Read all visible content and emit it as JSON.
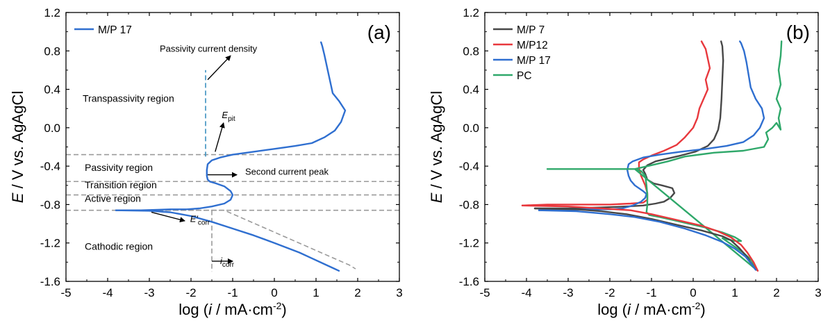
{
  "chart_data": [
    {
      "type": "line",
      "panel_label": "(a)",
      "xlabel": {
        "pre": "log (",
        "italic": "i",
        "post": " / mA·cm",
        "sup": "-2",
        "close": ")"
      },
      "ylabel": {
        "italic": "E",
        "post": " / V vs. AgAgCl"
      },
      "xlim": [
        -5,
        3
      ],
      "ylim": [
        -1.6,
        1.2
      ],
      "xticks": [
        "-5",
        "-4",
        "-3",
        "-2",
        "-1",
        "0",
        "1",
        "2",
        "3"
      ],
      "yticks": [
        "-1.6",
        "-1.2",
        "-0.8",
        "-0.4",
        "0.0",
        "0.4",
        "0.8",
        "1.2"
      ],
      "grid": false,
      "legend": "top-left",
      "series": [
        {
          "name": "M/P 17",
          "color": "#2f6fd0",
          "points": [
            [
              -3.8,
              -0.86
            ],
            [
              -3.2,
              -0.86
            ],
            [
              -2.8,
              -0.855
            ],
            [
              -2.5,
              -0.85
            ],
            [
              -2.1,
              -0.85
            ],
            [
              -1.8,
              -0.84
            ],
            [
              -1.5,
              -0.82
            ],
            [
              -1.2,
              -0.79
            ],
            [
              -1.05,
              -0.75
            ],
            [
              -1.0,
              -0.7
            ],
            [
              -1.05,
              -0.66
            ],
            [
              -1.2,
              -0.61
            ],
            [
              -1.4,
              -0.58
            ],
            [
              -1.55,
              -0.56
            ],
            [
              -1.6,
              -0.54
            ],
            [
              -1.62,
              -0.5
            ],
            [
              -1.62,
              -0.44
            ],
            [
              -1.6,
              -0.38
            ],
            [
              -1.5,
              -0.34
            ],
            [
              -1.3,
              -0.31
            ],
            [
              -1.0,
              -0.28
            ],
            [
              -0.5,
              -0.25
            ],
            [
              0.0,
              -0.22
            ],
            [
              0.5,
              -0.19
            ],
            [
              0.9,
              -0.16
            ],
            [
              1.2,
              -0.1
            ],
            [
              1.45,
              -0.03
            ],
            [
              1.6,
              0.06
            ],
            [
              1.7,
              0.18
            ],
            [
              1.55,
              0.28
            ],
            [
              1.4,
              0.36
            ],
            [
              1.35,
              0.46
            ],
            [
              1.3,
              0.56
            ],
            [
              1.25,
              0.66
            ],
            [
              1.2,
              0.76
            ],
            [
              1.15,
              0.85
            ],
            [
              1.12,
              0.89
            ]
          ]
        },
        {
          "name": "",
          "color": "#2f6fd0",
          "points": [
            [
              -3.8,
              -0.86
            ],
            [
              -3.0,
              -0.865
            ],
            [
              -2.5,
              -0.88
            ],
            [
              -2.0,
              -0.92
            ],
            [
              -1.5,
              -0.98
            ],
            [
              -1.0,
              -1.05
            ],
            [
              -0.5,
              -1.12
            ],
            [
              0.0,
              -1.2
            ],
            [
              0.3,
              -1.25
            ],
            [
              0.6,
              -1.3
            ],
            [
              0.9,
              -1.36
            ],
            [
              1.2,
              -1.42
            ],
            [
              1.4,
              -1.46
            ],
            [
              1.55,
              -1.49
            ]
          ]
        }
      ],
      "annotations": [
        {
          "text": "Passivity current density",
          "x": -2.75,
          "y": 0.79
        },
        {
          "text": "Transpassivity region",
          "x": -4.6,
          "y": 0.27
        },
        {
          "text": "Passivity region",
          "x": -4.55,
          "y": -0.45
        },
        {
          "text": "Transition region",
          "x": -4.55,
          "y": -0.63
        },
        {
          "text": "Active region",
          "x": -4.55,
          "y": -0.77
        },
        {
          "text": "Cathodic region",
          "x": -4.55,
          "y": -1.27
        },
        {
          "text": "Second current peak",
          "x": -0.7,
          "y": -0.49
        },
        {
          "text": "E",
          "sub": "pit",
          "x": -1.26,
          "y": 0.1
        },
        {
          "text": "E′",
          "sub": "corr",
          "x": -2.02,
          "y": -0.98
        },
        {
          "text": "i",
          "sub": "corr",
          "x": -1.3,
          "y": -1.42
        }
      ],
      "reference_lines": {
        "hlines": [
          -0.28,
          -0.56,
          -0.7,
          -0.86
        ],
        "vlines": [
          {
            "x": -1.65,
            "y0": -0.3,
            "y1": 0.6
          },
          {
            "x": -1.5,
            "y0": -0.86,
            "y1": -1.5
          }
        ],
        "tafel": [
          [
            -3.7,
            -0.86
          ],
          [
            -1.2,
            -0.86
          ],
          [
            1.8,
            -1.43
          ],
          [
            1.95,
            -1.47
          ]
        ]
      }
    },
    {
      "type": "line",
      "panel_label": "(b)",
      "xlabel": {
        "pre": "log (",
        "italic": "i",
        "post": " / mA·cm",
        "sup": "-2",
        "close": ")"
      },
      "ylabel": {
        "italic": "E",
        "post": " / V vs. AgAgCl"
      },
      "xlim": [
        -5,
        3
      ],
      "ylim": [
        -1.6,
        1.2
      ],
      "xticks": [
        "-5",
        "-4",
        "-3",
        "-2",
        "-1",
        "0",
        "1",
        "2",
        "3"
      ],
      "yticks": [
        "-1.6",
        "-1.2",
        "-0.8",
        "-0.4",
        "0.0",
        "0.4",
        "0.8",
        "1.2"
      ],
      "grid": false,
      "legend": "top-left",
      "series": [
        {
          "name": "M/P 7",
          "color": "#474747",
          "points": [
            [
              -3.8,
              -0.84
            ],
            [
              -3.0,
              -0.84
            ],
            [
              -2.2,
              -0.83
            ],
            [
              -1.6,
              -0.82
            ],
            [
              -1.2,
              -0.81
            ],
            [
              -0.9,
              -0.79
            ],
            [
              -0.7,
              -0.77
            ],
            [
              -0.55,
              -0.73
            ],
            [
              -0.45,
              -0.68
            ],
            [
              -0.5,
              -0.63
            ],
            [
              -0.75,
              -0.6
            ],
            [
              -0.95,
              -0.58
            ],
            [
              -1.1,
              -0.54
            ],
            [
              -1.15,
              -0.48
            ],
            [
              -1.2,
              -0.44
            ],
            [
              -1.1,
              -0.39
            ],
            [
              -0.9,
              -0.35
            ],
            [
              -0.6,
              -0.32
            ],
            [
              -0.3,
              -0.29
            ],
            [
              0.05,
              -0.25
            ],
            [
              0.35,
              -0.19
            ],
            [
              0.5,
              -0.12
            ],
            [
              0.6,
              -0.02
            ],
            [
              0.65,
              0.1
            ],
            [
              0.68,
              0.3
            ],
            [
              0.7,
              0.5
            ],
            [
              0.72,
              0.7
            ],
            [
              0.7,
              0.85
            ],
            [
              0.67,
              0.9
            ]
          ]
        },
        {
          "name": "M/P12",
          "color": "#e8383d",
          "points": [
            [
              -4.1,
              -0.81
            ],
            [
              -3.5,
              -0.8
            ],
            [
              -2.8,
              -0.8
            ],
            [
              -2.0,
              -0.8
            ],
            [
              -1.5,
              -0.79
            ],
            [
              -1.2,
              -0.78
            ],
            [
              -1.1,
              -0.75
            ],
            [
              -1.1,
              -0.68
            ],
            [
              -1.15,
              -0.6
            ],
            [
              -1.25,
              -0.5
            ],
            [
              -1.3,
              -0.42
            ],
            [
              -1.3,
              -0.36
            ],
            [
              -1.2,
              -0.33
            ],
            [
              -1.0,
              -0.29
            ],
            [
              -0.7,
              -0.24
            ],
            [
              -0.4,
              -0.18
            ],
            [
              -0.2,
              -0.1
            ],
            [
              0.0,
              0.0
            ],
            [
              0.1,
              0.1
            ],
            [
              0.15,
              0.2
            ],
            [
              0.25,
              0.3
            ],
            [
              0.35,
              0.4
            ],
            [
              0.3,
              0.5
            ],
            [
              0.4,
              0.62
            ],
            [
              0.35,
              0.72
            ],
            [
              0.3,
              0.82
            ],
            [
              0.2,
              0.9
            ]
          ]
        },
        {
          "name": "M/P 17",
          "color": "#2f6fd0",
          "points": [
            [
              -3.7,
              -0.86
            ],
            [
              -3.0,
              -0.855
            ],
            [
              -2.5,
              -0.85
            ],
            [
              -2.0,
              -0.85
            ],
            [
              -1.7,
              -0.84
            ],
            [
              -1.45,
              -0.81
            ],
            [
              -1.25,
              -0.77
            ],
            [
              -1.15,
              -0.73
            ],
            [
              -1.12,
              -0.69
            ],
            [
              -1.2,
              -0.66
            ],
            [
              -1.4,
              -0.6
            ],
            [
              -1.5,
              -0.55
            ],
            [
              -1.55,
              -0.5
            ],
            [
              -1.58,
              -0.44
            ],
            [
              -1.55,
              -0.38
            ],
            [
              -1.45,
              -0.35
            ],
            [
              -1.2,
              -0.31
            ],
            [
              -0.8,
              -0.28
            ],
            [
              -0.3,
              -0.25
            ],
            [
              0.3,
              -0.22
            ],
            [
              0.8,
              -0.19
            ],
            [
              1.2,
              -0.15
            ],
            [
              1.45,
              -0.08
            ],
            [
              1.6,
              0.0
            ],
            [
              1.7,
              0.1
            ],
            [
              1.65,
              0.2
            ],
            [
              1.5,
              0.3
            ],
            [
              1.38,
              0.42
            ],
            [
              1.33,
              0.55
            ],
            [
              1.28,
              0.68
            ],
            [
              1.22,
              0.8
            ],
            [
              1.15,
              0.88
            ],
            [
              1.12,
              0.9
            ]
          ]
        },
        {
          "name": "PC",
          "color": "#2fa86a",
          "points": [
            [
              -3.5,
              -0.43
            ],
            [
              -3.0,
              -0.43
            ],
            [
              -2.4,
              -0.43
            ],
            [
              -1.8,
              -0.43
            ],
            [
              -1.4,
              -0.43
            ],
            [
              -1.25,
              -0.45
            ],
            [
              -1.15,
              -0.5
            ],
            [
              -1.12,
              -0.6
            ],
            [
              -1.1,
              -0.7
            ],
            [
              -1.1,
              -0.8
            ],
            [
              -1.12,
              -0.88
            ],
            [
              -1.05,
              -0.91
            ],
            [
              -0.8,
              -0.93
            ],
            [
              -0.5,
              -0.96
            ],
            [
              -0.1,
              -1.0
            ],
            [
              0.3,
              -1.04
            ],
            [
              0.7,
              -1.09
            ],
            [
              1.0,
              -1.14
            ],
            [
              1.15,
              -1.18
            ],
            [
              1.0,
              -1.18
            ],
            [
              0.7,
              -1.15
            ],
            [
              0.9,
              -1.21
            ],
            [
              1.2,
              -1.3
            ],
            [
              1.4,
              -1.38
            ],
            [
              1.52,
              -1.48
            ],
            [
              -1.4,
              -0.43
            ],
            [
              -1.3,
              -0.42
            ],
            [
              -1.0,
              -0.39
            ],
            [
              -0.6,
              -0.35
            ],
            [
              -0.2,
              -0.3
            ],
            [
              0.5,
              -0.26
            ],
            [
              1.2,
              -0.24
            ],
            [
              1.7,
              -0.2
            ],
            [
              1.8,
              -0.12
            ],
            [
              1.75,
              -0.05
            ],
            [
              1.9,
              0.0
            ],
            [
              2.0,
              0.05
            ],
            [
              2.1,
              -0.02
            ],
            [
              2.05,
              0.1
            ],
            [
              2.1,
              0.2
            ],
            [
              2.0,
              0.3
            ],
            [
              2.1,
              0.45
            ],
            [
              2.05,
              0.6
            ],
            [
              2.1,
              0.75
            ],
            [
              2.12,
              0.9
            ]
          ]
        },
        {
          "name": "",
          "color": "#474747",
          "points": [
            [
              -3.8,
              -0.84
            ],
            [
              -2.8,
              -0.85
            ],
            [
              -2.2,
              -0.87
            ],
            [
              -1.6,
              -0.9
            ],
            [
              -1.0,
              -0.95
            ],
            [
              -0.4,
              -1.01
            ],
            [
              0.2,
              -1.07
            ],
            [
              0.7,
              -1.13
            ],
            [
              0.9,
              -1.17
            ],
            [
              1.1,
              -1.25
            ],
            [
              1.3,
              -1.35
            ],
            [
              1.45,
              -1.45
            ],
            [
              1.52,
              -1.48
            ]
          ]
        },
        {
          "name": "",
          "color": "#e8383d",
          "points": [
            [
              -4.1,
              -0.81
            ],
            [
              -3.0,
              -0.82
            ],
            [
              -2.2,
              -0.84
            ],
            [
              -1.5,
              -0.86
            ],
            [
              -1.0,
              -0.9
            ],
            [
              -0.4,
              -0.96
            ],
            [
              0.2,
              -1.02
            ],
            [
              0.6,
              -1.08
            ],
            [
              0.9,
              -1.14
            ],
            [
              1.15,
              -1.22
            ],
            [
              1.3,
              -1.3
            ],
            [
              1.45,
              -1.4
            ],
            [
              1.55,
              -1.49
            ]
          ]
        },
        {
          "name": "",
          "color": "#2f6fd0",
          "points": [
            [
              -3.7,
              -0.86
            ],
            [
              -2.8,
              -0.87
            ],
            [
              -2.0,
              -0.9
            ],
            [
              -1.4,
              -0.93
            ],
            [
              -0.8,
              -0.98
            ],
            [
              -0.2,
              -1.05
            ],
            [
              0.3,
              -1.12
            ],
            [
              0.7,
              -1.19
            ],
            [
              1.0,
              -1.26
            ],
            [
              1.25,
              -1.34
            ],
            [
              1.4,
              -1.42
            ],
            [
              1.5,
              -1.48
            ]
          ]
        }
      ]
    }
  ]
}
